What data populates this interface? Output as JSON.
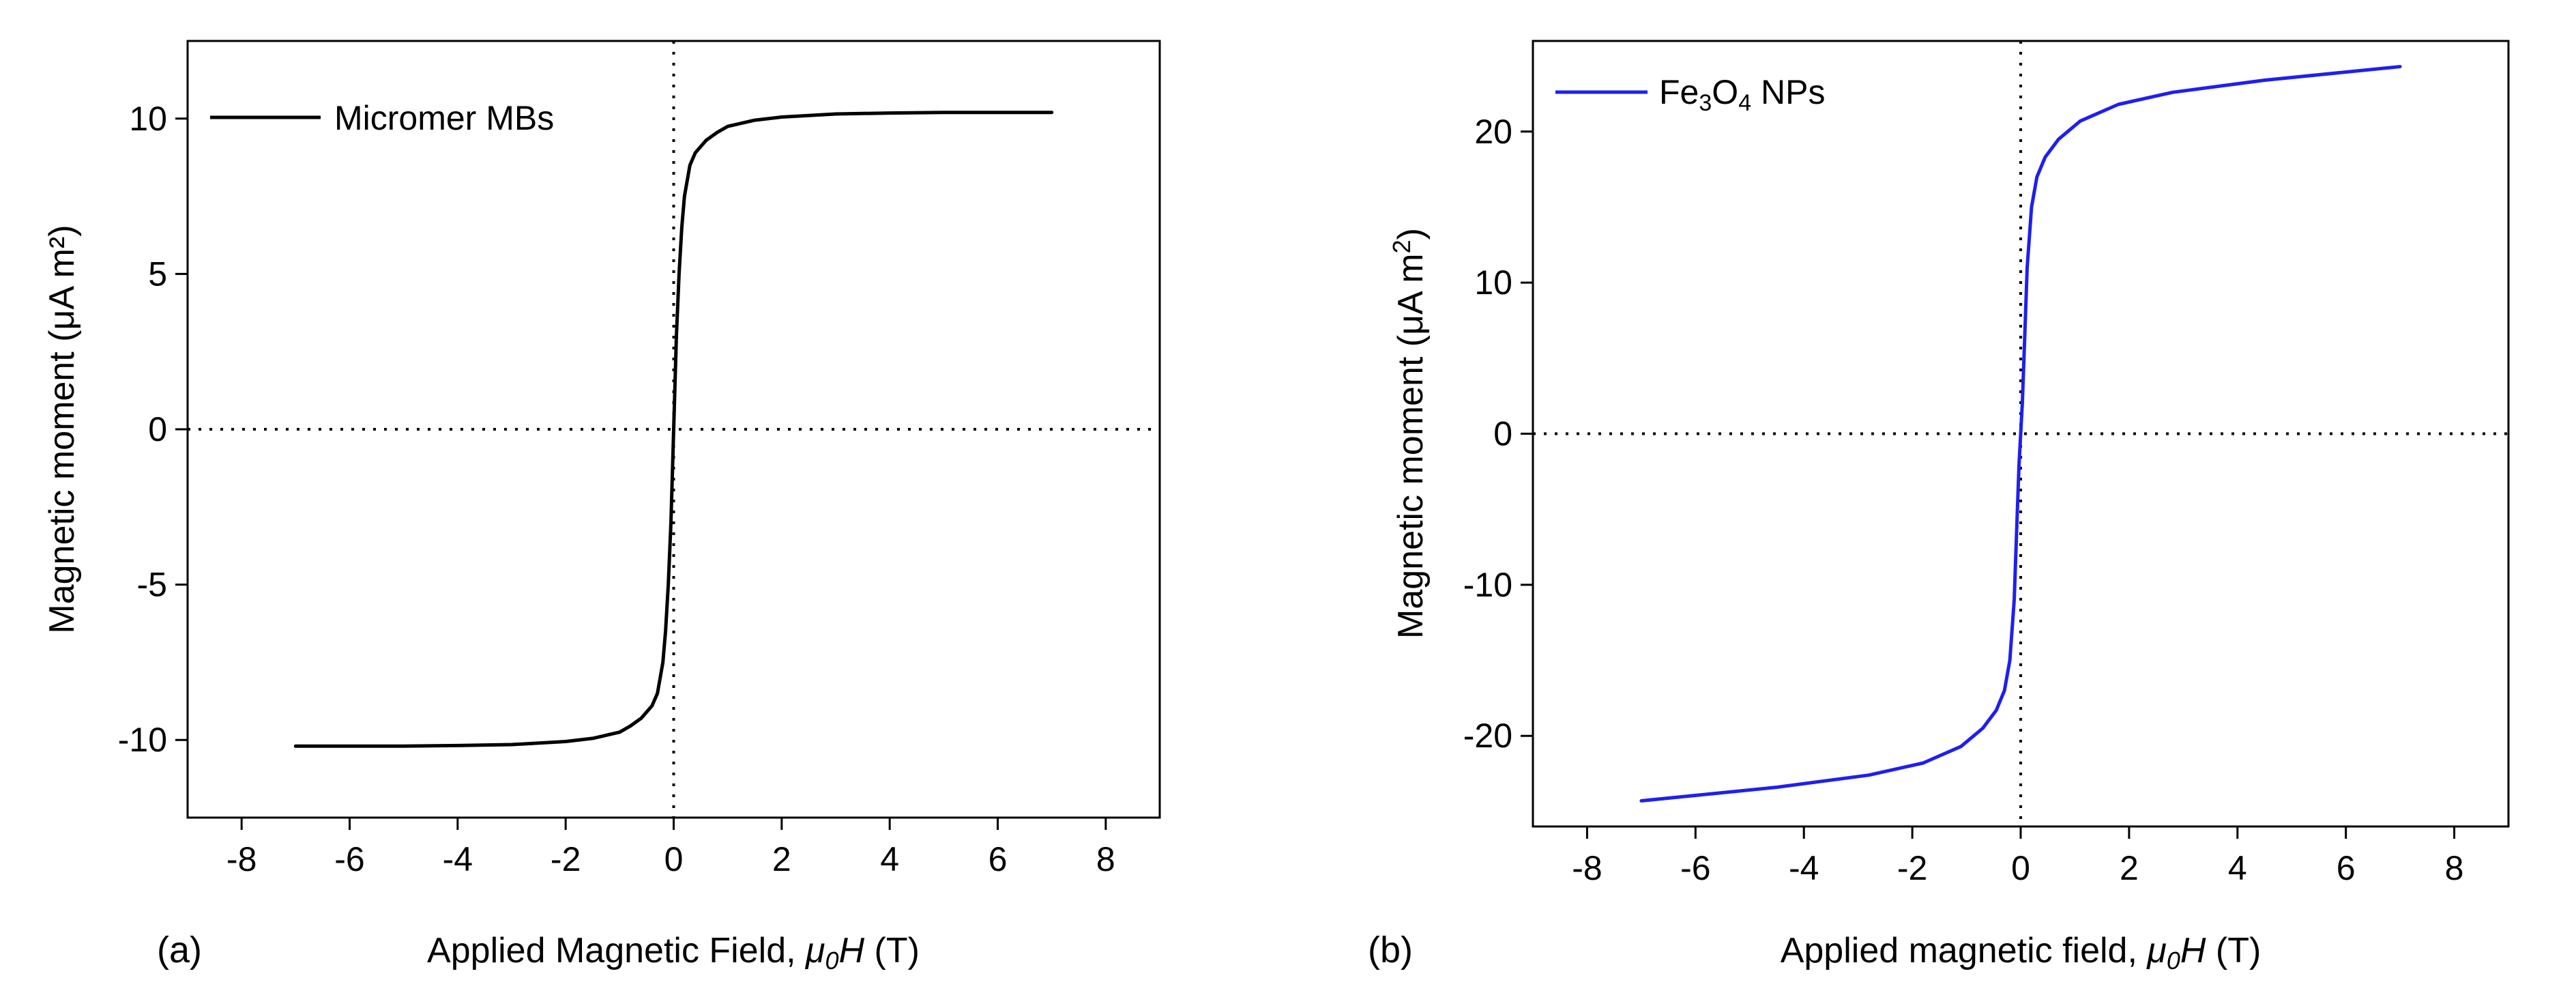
{
  "chart_data": [
    {
      "type": "line",
      "panel_label": "(a)",
      "xlabel_prefix": "Applied Magnetic Field, ",
      "xlabel_symbol": "μ",
      "xlabel_subscript": "0",
      "xlabel_symbol2": "H",
      "xlabel_suffix": " (T)",
      "ylabel": "Magnetic moment (μA m²)",
      "xlim": [
        -9,
        9
      ],
      "ylim": [
        -12.5,
        12.5
      ],
      "xticks": [
        -8,
        -6,
        -4,
        -2,
        0,
        2,
        4,
        6,
        8
      ],
      "yticks": [
        -10,
        -5,
        0,
        5,
        10
      ],
      "reference_lines": {
        "x": 0,
        "y": 0,
        "style": "dotted"
      },
      "legend_position": "top-left",
      "series": [
        {
          "name": "Micromer MBs",
          "legend_main": "Micromer MBs",
          "color": "#000000",
          "x": [
            -7.0,
            -5.0,
            -4.0,
            -3.0,
            -2.0,
            -1.5,
            -1.0,
            -0.8,
            -0.6,
            -0.4,
            -0.3,
            -0.2,
            -0.15,
            -0.1,
            -0.05,
            -0.02,
            0.0,
            0.02,
            0.05,
            0.1,
            0.15,
            0.2,
            0.3,
            0.4,
            0.6,
            0.8,
            1.0,
            1.5,
            2.0,
            3.0,
            4.0,
            5.0,
            7.0
          ],
          "y": [
            -10.2,
            -10.2,
            -10.18,
            -10.15,
            -10.05,
            -9.95,
            -9.75,
            -9.55,
            -9.3,
            -8.9,
            -8.5,
            -7.5,
            -6.5,
            -5.0,
            -3.0,
            -1.2,
            0.0,
            1.2,
            3.0,
            5.0,
            6.5,
            7.5,
            8.5,
            8.9,
            9.3,
            9.55,
            9.75,
            9.95,
            10.05,
            10.15,
            10.18,
            10.2,
            10.2
          ]
        }
      ]
    },
    {
      "type": "line",
      "panel_label": "(b)",
      "xlabel_prefix": "Applied magnetic field, ",
      "xlabel_symbol": "μ",
      "xlabel_subscript": "0",
      "xlabel_symbol2": "H",
      "xlabel_suffix": " (T)",
      "ylabel_main": "Magnetic moment (μA m",
      "ylabel_sup": "2",
      "ylabel_end": ")",
      "xlim": [
        -9,
        9
      ],
      "ylim": [
        -26,
        26
      ],
      "xticks": [
        -8,
        -6,
        -4,
        -2,
        0,
        2,
        4,
        6,
        8
      ],
      "yticks": [
        -20,
        -10,
        0,
        10,
        20
      ],
      "reference_lines": {
        "x": 0,
        "y": 0,
        "style": "dotted"
      },
      "legend_position": "top-left",
      "series": [
        {
          "name": "Fe3O4 NPs",
          "legend_main": "Fe",
          "legend_sub1": "3",
          "legend_mid": "O",
          "legend_sub2": "4",
          "legend_end": " NPs",
          "color": "#1f1ff0",
          "x": [
            -7.0,
            -4.5,
            -2.8,
            -1.8,
            -1.1,
            -0.7,
            -0.45,
            -0.3,
            -0.2,
            -0.12,
            -0.07,
            -0.03,
            0.0,
            0.03,
            0.07,
            0.12,
            0.2,
            0.3,
            0.45,
            0.7,
            1.1,
            1.8,
            2.8,
            4.5,
            7.0
          ],
          "y": [
            -24.3,
            -23.4,
            -22.6,
            -21.8,
            -20.7,
            -19.5,
            -18.3,
            -17.0,
            -15.0,
            -11.0,
            -6.0,
            -2.0,
            0.0,
            2.0,
            6.0,
            11.0,
            15.0,
            17.0,
            18.3,
            19.5,
            20.7,
            21.8,
            22.6,
            23.4,
            24.3
          ]
        }
      ]
    }
  ]
}
